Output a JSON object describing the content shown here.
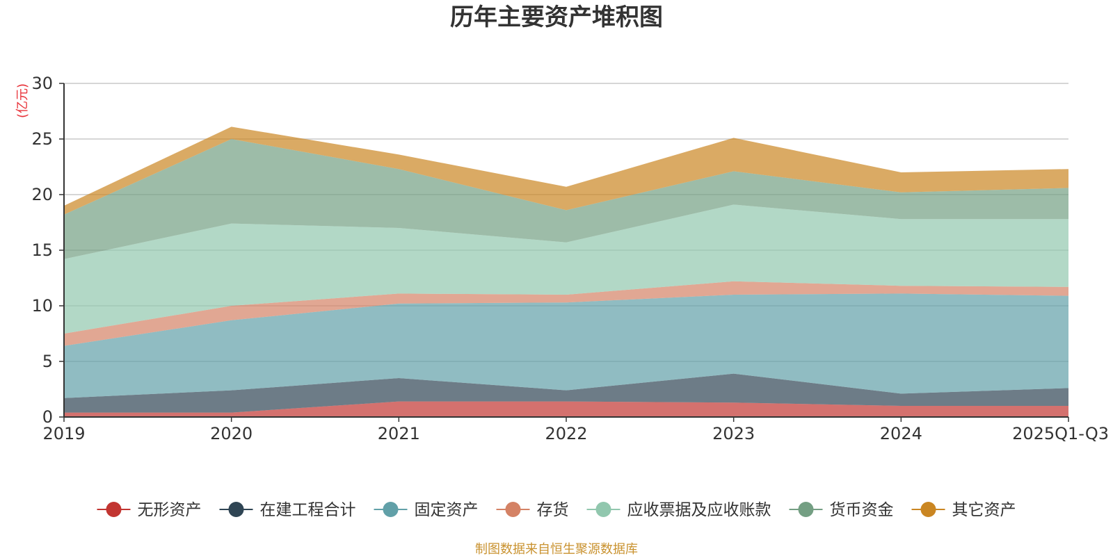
{
  "chart_data": {
    "type": "area",
    "stacked": true,
    "title": "历年主要资产堆积图",
    "ylabel": "(亿元)",
    "ylim": [
      0,
      30
    ],
    "yticks": [
      0,
      5,
      10,
      15,
      20,
      25,
      30
    ],
    "categories": [
      "2019",
      "2020",
      "2021",
      "2022",
      "2023",
      "2024",
      "2025Q1-Q3"
    ],
    "series": [
      {
        "name": "无形资产",
        "color": "#c23531",
        "values": [
          0.4,
          0.4,
          1.4,
          1.4,
          1.3,
          1.0,
          1.0
        ]
      },
      {
        "name": "在建工程合计",
        "color": "#2f4554",
        "values": [
          1.3,
          2.0,
          2.1,
          1.0,
          2.6,
          1.1,
          1.6
        ]
      },
      {
        "name": "固定资产",
        "color": "#61a0a8",
        "values": [
          4.7,
          6.3,
          6.7,
          7.9,
          7.1,
          9.0,
          8.3
        ]
      },
      {
        "name": "存货",
        "color": "#d48265",
        "values": [
          1.1,
          1.3,
          0.9,
          0.7,
          1.2,
          0.7,
          0.8
        ]
      },
      {
        "name": "应收票据及应收账款",
        "color": "#91c7ae",
        "values": [
          6.7,
          7.4,
          5.9,
          4.7,
          6.9,
          6.0,
          6.1
        ]
      },
      {
        "name": "货币资金",
        "color": "#749f83",
        "values": [
          4.0,
          7.6,
          5.3,
          2.9,
          3.0,
          2.4,
          2.8
        ]
      },
      {
        "name": "其它资产",
        "color": "#ca8622",
        "values": [
          0.8,
          1.1,
          1.3,
          2.1,
          3.0,
          1.8,
          1.7
        ]
      }
    ]
  },
  "source_text": "制图数据来自恒生聚源数据库"
}
